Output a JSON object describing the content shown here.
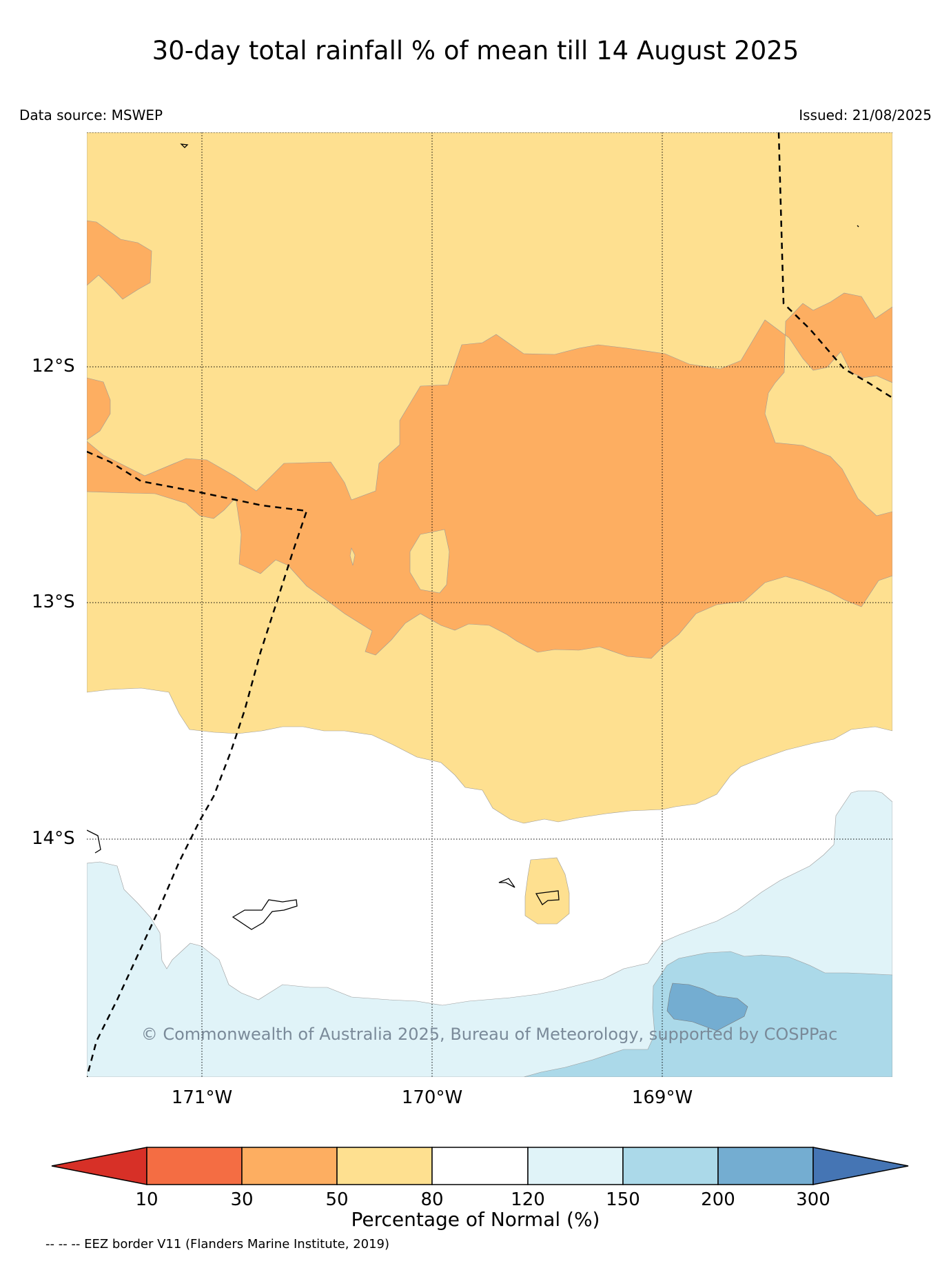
{
  "title": "30-day total rainfall % of mean till 14 August 2025",
  "data_source": "Data source: MSWEP",
  "issued": "Issued: 21/08/2025",
  "copyright": "© Commonwealth of Australia 2025, Bureau of Meteorology, supported by COSPPac",
  "latitude_labels": [
    "12°S",
    "13°S",
    "14°S"
  ],
  "longitude_labels": [
    "171°W",
    "170°W",
    "169°W"
  ],
  "colorbar": {
    "label": "Percentage of Normal (%)",
    "ticks": [
      "10",
      "30",
      "50",
      "80",
      "120",
      "150",
      "200",
      "300"
    ],
    "colors": {
      "below_10": "#d73027",
      "10_30": "#f46d43",
      "30_50": "#fdae61",
      "50_80": "#fee090",
      "80_120": "#ffffff",
      "120_150": "#e0f3f8",
      "150_200": "#abd9e9",
      "200_300": "#74add1",
      "above_300": "#4575b4"
    }
  },
  "eez_note": "-- -- -- EEZ border V11 (Flanders Marine Institute, 2019)"
}
